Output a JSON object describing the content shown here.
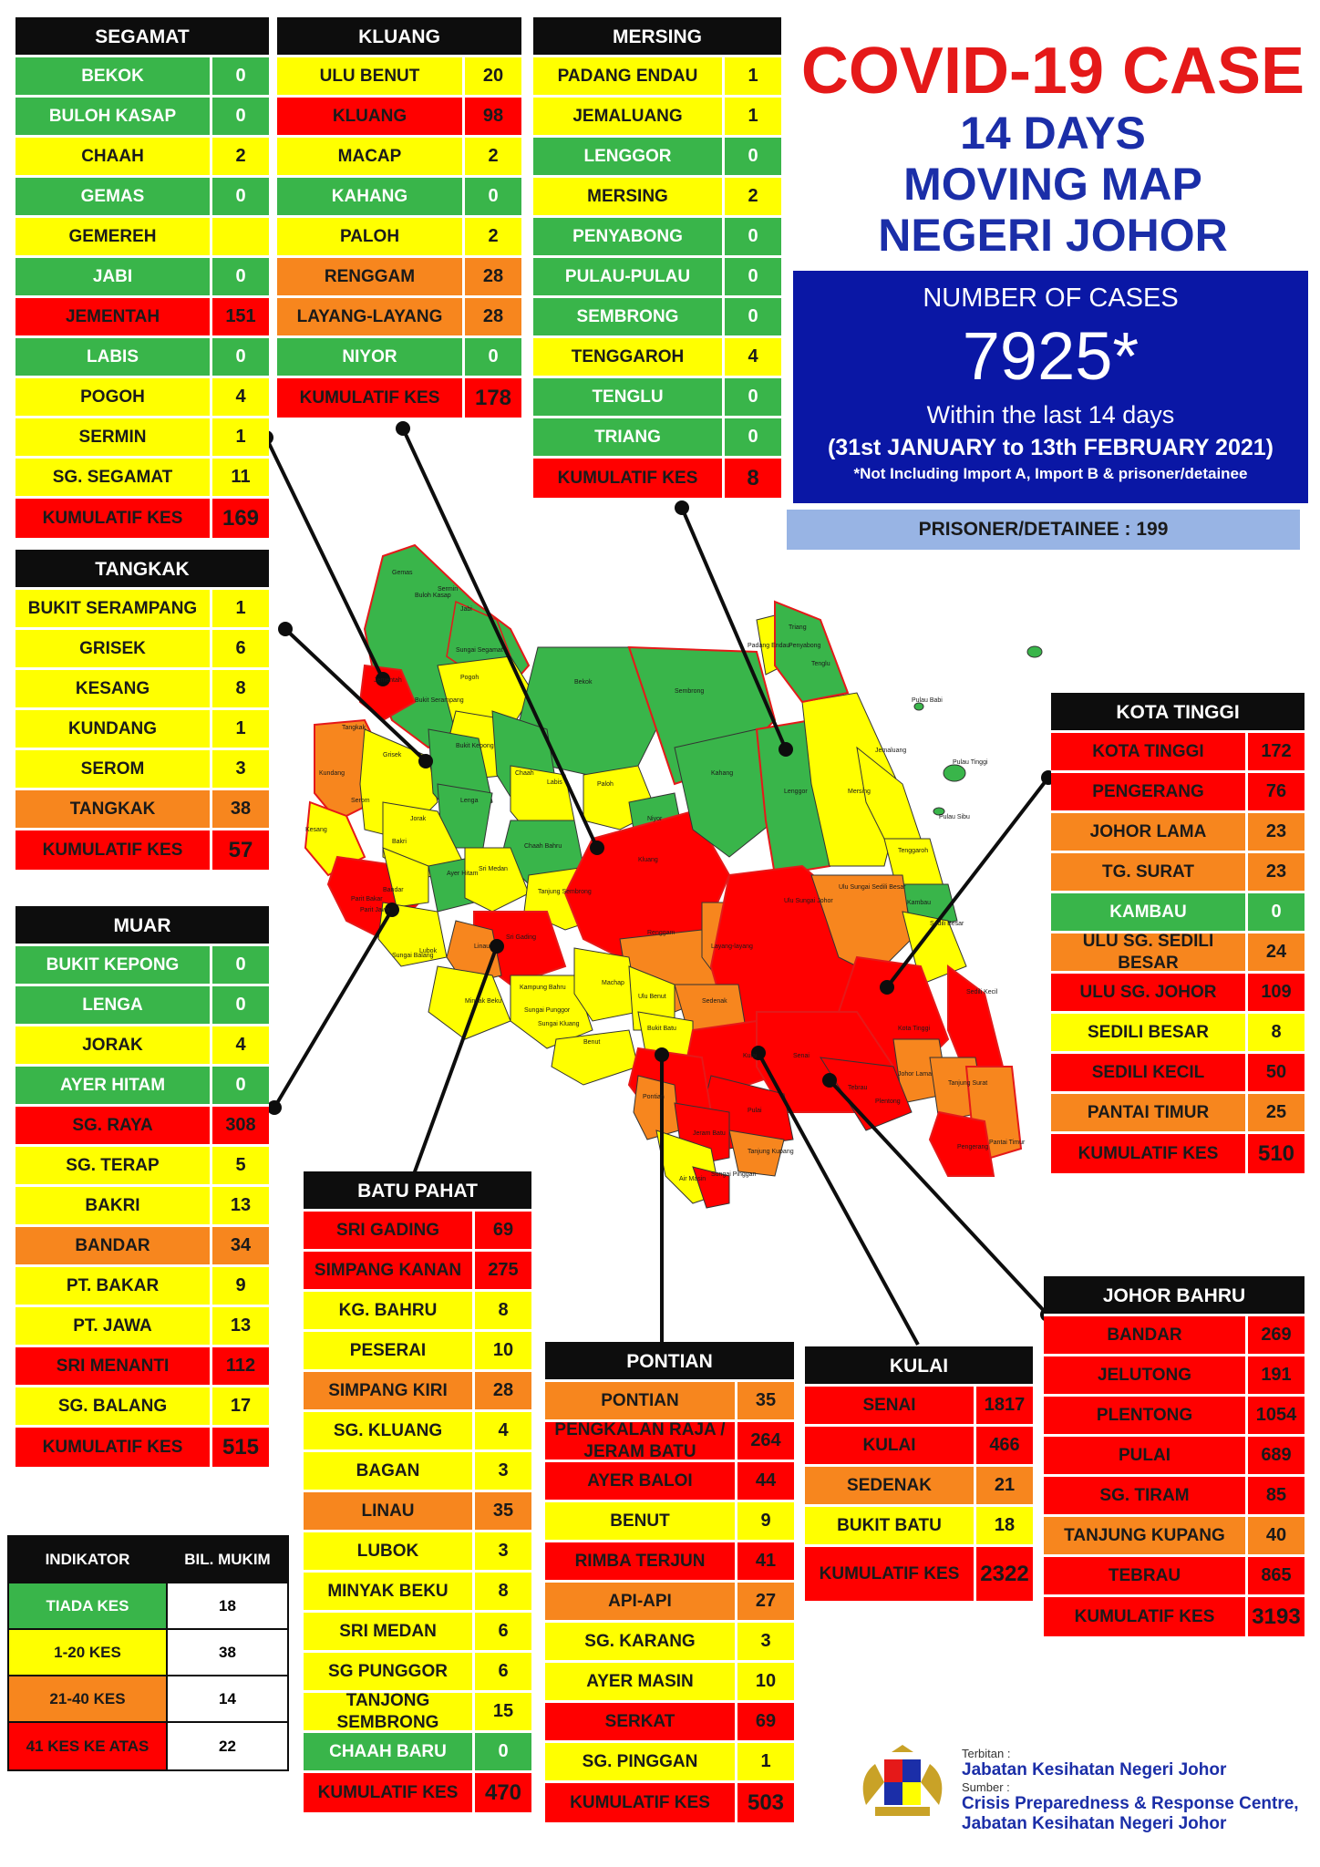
{
  "title": {
    "line1": "COVID-19 CASE",
    "line2": "14 DAYS",
    "line3": "MOVING MAP",
    "line4": "NEGERI JOHOR"
  },
  "summary": {
    "label": "NUMBER OF CASES",
    "total": "7925*",
    "within": "Within the last 14 days",
    "period": "(31st JANUARY to 13th FEBRUARY 2021)",
    "note": "*Not Including Import A, Import B & prisoner/detainee",
    "prisoner": "PRISONER/DETAINEE : 199"
  },
  "colors": {
    "green": "#39b54a",
    "yellow": "#ffff00",
    "orange": "#f7861e",
    "red": "#ff0000",
    "black": "#0d0d0d",
    "blue": "#0a17a5"
  },
  "districts": {
    "segamat": {
      "name": "SEGAMAT",
      "rows": [
        {
          "name": "BEKOK",
          "value": "0",
          "level": "g"
        },
        {
          "name": "BULOH KASAP",
          "value": "0",
          "level": "g"
        },
        {
          "name": "CHAAH",
          "value": "2",
          "level": "y"
        },
        {
          "name": "GEMAS",
          "value": "0",
          "level": "g"
        },
        {
          "name": "GEMEREH",
          "value": "",
          "level": "y"
        },
        {
          "name": "JABI",
          "value": "0",
          "level": "g"
        },
        {
          "name": "JEMENTAH",
          "value": "151",
          "level": "r"
        },
        {
          "name": "LABIS",
          "value": "0",
          "level": "g"
        },
        {
          "name": "POGOH",
          "value": "4",
          "level": "y"
        },
        {
          "name": "SERMIN",
          "value": "1",
          "level": "y"
        },
        {
          "name": "SG. SEGAMAT",
          "value": "11",
          "level": "y"
        }
      ],
      "total_label": "KUMULATIF KES",
      "total": "169"
    },
    "kluang": {
      "name": "KLUANG",
      "rows": [
        {
          "name": "ULU BENUT",
          "value": "20",
          "level": "y"
        },
        {
          "name": "KLUANG",
          "value": "98",
          "level": "r"
        },
        {
          "name": "MACAP",
          "value": "2",
          "level": "y"
        },
        {
          "name": "KAHANG",
          "value": "0",
          "level": "g"
        },
        {
          "name": "PALOH",
          "value": "2",
          "level": "y"
        },
        {
          "name": "RENGGAM",
          "value": "28",
          "level": "o"
        },
        {
          "name": "LAYANG-LAYANG",
          "value": "28",
          "level": "o"
        },
        {
          "name": "NIYOR",
          "value": "0",
          "level": "g"
        }
      ],
      "total_label": "KUMULATIF KES",
      "total": "178"
    },
    "mersing": {
      "name": "MERSING",
      "rows": [
        {
          "name": "PADANG ENDAU",
          "value": "1",
          "level": "y"
        },
        {
          "name": "JEMALUANG",
          "value": "1",
          "level": "y"
        },
        {
          "name": "LENGGOR",
          "value": "0",
          "level": "g"
        },
        {
          "name": "MERSING",
          "value": "2",
          "level": "y"
        },
        {
          "name": "PENYABONG",
          "value": "0",
          "level": "g"
        },
        {
          "name": "PULAU-PULAU",
          "value": "0",
          "level": "g"
        },
        {
          "name": "SEMBRONG",
          "value": "0",
          "level": "g"
        },
        {
          "name": "TENGGAROH",
          "value": "4",
          "level": "y"
        },
        {
          "name": "TENGLU",
          "value": "0",
          "level": "g"
        },
        {
          "name": "TRIANG",
          "value": "0",
          "level": "g"
        }
      ],
      "total_label": "KUMULATIF KES",
      "total": "8"
    },
    "tangkak": {
      "name": "TANGKAK",
      "rows": [
        {
          "name": "BUKIT SERAMPANG",
          "value": "1",
          "level": "y"
        },
        {
          "name": "GRISEK",
          "value": "6",
          "level": "y"
        },
        {
          "name": "KESANG",
          "value": "8",
          "level": "y"
        },
        {
          "name": "KUNDANG",
          "value": "1",
          "level": "y"
        },
        {
          "name": "SEROM",
          "value": "3",
          "level": "y"
        },
        {
          "name": "TANGKAK",
          "value": "38",
          "level": "o"
        }
      ],
      "total_label": "KUMULATIF KES",
      "total": "57"
    },
    "muar": {
      "name": "MUAR",
      "rows": [
        {
          "name": "BUKIT KEPONG",
          "value": "0",
          "level": "g"
        },
        {
          "name": "LENGA",
          "value": "0",
          "level": "g"
        },
        {
          "name": "JORAK",
          "value": "4",
          "level": "y"
        },
        {
          "name": "AYER HITAM",
          "value": "0",
          "level": "g"
        },
        {
          "name": "SG. RAYA",
          "value": "308",
          "level": "r"
        },
        {
          "name": "SG. TERAP",
          "value": "5",
          "level": "y"
        },
        {
          "name": "BAKRI",
          "value": "13",
          "level": "y"
        },
        {
          "name": "BANDAR",
          "value": "34",
          "level": "o"
        },
        {
          "name": "PT. BAKAR",
          "value": "9",
          "level": "y"
        },
        {
          "name": "PT. JAWA",
          "value": "13",
          "level": "y"
        },
        {
          "name": "SRI MENANTI",
          "value": "112",
          "level": "r"
        },
        {
          "name": "SG. BALANG",
          "value": "17",
          "level": "y"
        }
      ],
      "total_label": "KUMULATIF KES",
      "total": "515"
    },
    "batu_pahat": {
      "name": "BATU PAHAT",
      "rows": [
        {
          "name": "SRI GADING",
          "value": "69",
          "level": "r"
        },
        {
          "name": "SIMPANG KANAN",
          "value": "275",
          "level": "r"
        },
        {
          "name": "KG. BAHRU",
          "value": "8",
          "level": "y"
        },
        {
          "name": "PESERAI",
          "value": "10",
          "level": "y"
        },
        {
          "name": "SIMPANG KIRI",
          "value": "28",
          "level": "o"
        },
        {
          "name": "SG. KLUANG",
          "value": "4",
          "level": "y"
        },
        {
          "name": "BAGAN",
          "value": "3",
          "level": "y"
        },
        {
          "name": "LINAU",
          "value": "35",
          "level": "o"
        },
        {
          "name": "LUBOK",
          "value": "3",
          "level": "y"
        },
        {
          "name": "MINYAK BEKU",
          "value": "8",
          "level": "y"
        },
        {
          "name": "SRI MEDAN",
          "value": "6",
          "level": "y"
        },
        {
          "name": "SG PUNGGOR",
          "value": "6",
          "level": "y"
        },
        {
          "name": "TANJONG SEMBRONG",
          "value": "15",
          "level": "y"
        },
        {
          "name": "CHAAH BARU",
          "value": "0",
          "level": "g"
        }
      ],
      "total_label": "KUMULATIF KES",
      "total": "470"
    },
    "pontian": {
      "name": "PONTIAN",
      "rows": [
        {
          "name": "PONTIAN",
          "value": "35",
          "level": "o"
        },
        {
          "name": "PENGKALAN RAJA / JERAM BATU",
          "value": "264",
          "level": "r"
        },
        {
          "name": "AYER BALOI",
          "value": "44",
          "level": "r"
        },
        {
          "name": "BENUT",
          "value": "9",
          "level": "y"
        },
        {
          "name": "RIMBA TERJUN",
          "value": "41",
          "level": "r"
        },
        {
          "name": "API-API",
          "value": "27",
          "level": "o"
        },
        {
          "name": "SG. KARANG",
          "value": "3",
          "level": "y"
        },
        {
          "name": "AYER MASIN",
          "value": "10",
          "level": "y"
        },
        {
          "name": "SERKAT",
          "value": "69",
          "level": "r"
        },
        {
          "name": "SG. PINGGAN",
          "value": "1",
          "level": "y"
        }
      ],
      "total_label": "KUMULATIF KES",
      "total": "503"
    },
    "kulai": {
      "name": "KULAI",
      "rows": [
        {
          "name": "SENAI",
          "value": "1817",
          "level": "r"
        },
        {
          "name": "KULAI",
          "value": "466",
          "level": "r"
        },
        {
          "name": "SEDENAK",
          "value": "21",
          "level": "o"
        },
        {
          "name": "BUKIT BATU",
          "value": "18",
          "level": "y"
        }
      ],
      "total_label": "KUMULATIF KES",
      "total": "2322"
    },
    "kota_tinggi": {
      "name": "KOTA TINGGI",
      "rows": [
        {
          "name": "KOTA TINGGI",
          "value": "172",
          "level": "r"
        },
        {
          "name": "PENGERANG",
          "value": "76",
          "level": "r"
        },
        {
          "name": "JOHOR LAMA",
          "value": "23",
          "level": "o"
        },
        {
          "name": "TG. SURAT",
          "value": "23",
          "level": "o"
        },
        {
          "name": "KAMBAU",
          "value": "0",
          "level": "g"
        },
        {
          "name": "ULU SG. SEDILI BESAR",
          "value": "24",
          "level": "o"
        },
        {
          "name": "ULU SG. JOHOR",
          "value": "109",
          "level": "r"
        },
        {
          "name": "SEDILI BESAR",
          "value": "8",
          "level": "y"
        },
        {
          "name": "SEDILI KECIL",
          "value": "50",
          "level": "r"
        },
        {
          "name": "PANTAI TIMUR",
          "value": "25",
          "level": "o"
        }
      ],
      "total_label": "KUMULATIF KES",
      "total": "510"
    },
    "johor_bahru": {
      "name": "JOHOR BAHRU",
      "rows": [
        {
          "name": "BANDAR",
          "value": "269",
          "level": "r"
        },
        {
          "name": "JELUTONG",
          "value": "191",
          "level": "r"
        },
        {
          "name": "PLENTONG",
          "value": "1054",
          "level": "r"
        },
        {
          "name": "PULAI",
          "value": "689",
          "level": "r"
        },
        {
          "name": "SG. TIRAM",
          "value": "85",
          "level": "r"
        },
        {
          "name": "TANJUNG KUPANG",
          "value": "40",
          "level": "o"
        },
        {
          "name": "TEBRAU",
          "value": "865",
          "level": "r"
        }
      ],
      "total_label": "KUMULATIF KES",
      "total": "3193"
    }
  },
  "legend": {
    "header": [
      "INDIKATOR",
      "BIL. MUKIM"
    ],
    "rows": [
      {
        "label": "TIADA KES",
        "count": "18",
        "level": "g"
      },
      {
        "label": "1-20 KES",
        "count": "38",
        "level": "y"
      },
      {
        "label": "21-40 KES",
        "count": "14",
        "level": "o"
      },
      {
        "label": "41 KES KE ATAS",
        "count": "22",
        "level": "r"
      }
    ]
  },
  "footer": {
    "terbitan_label": "Terbitan :",
    "terbitan": "Jabatan Kesihatan Negeri Johor",
    "sumber_label": "Sumber :",
    "sumber1": "Crisis Preparedness & Response Centre,",
    "sumber2": "Jabatan Kesihatan Negeri Johor"
  },
  "map_labels": [
    "Gemas",
    "Buloh Kasap",
    "Sermin",
    "Jabi",
    "Sungai Segamat",
    "Pogoh",
    "Jementah",
    "Bukit Serampang",
    "Tangkak",
    "Grisek",
    "Bukit Kepong",
    "Chaah",
    "Labis",
    "Lenga",
    "Kundang",
    "Serom",
    "Kesang",
    "Jorak",
    "Bakri",
    "Ayer Hitam",
    "Sri Medan",
    "Paloh",
    "Niyor",
    "Chaah Bahru",
    "Tanjung Sembrong",
    "Kluang",
    "Renggam",
    "Layang-layang",
    "Bekok",
    "Sembrong",
    "Kahang",
    "Lenggor",
    "Mersing",
    "Padang Endau",
    "Triang",
    "Penyabong",
    "Tenglu",
    "Pulau Babi",
    "Pulau Tinggi",
    "Pulau Sibu",
    "Jemaluang",
    "Tenggaroh",
    "Kambau",
    "Ulu Sungai Sedili Besar",
    "Ulu Sungai Johor",
    "Sedili Besar",
    "Sedili Kecil",
    "Kota Tinggi",
    "Johor Lama",
    "Tanjung Surat",
    "Pantai Timur",
    "Pengerang",
    "Senai",
    "Kulai",
    "Sedenak",
    "Bukit Batu",
    "Tebrau",
    "Plentong",
    "Pulai",
    "Tanjung Kupang",
    "Benut",
    "Pontian",
    "Jeram Batu",
    "Sri Gading",
    "Machap",
    "Ulu Benut",
    "Linau",
    "Minyak Beku",
    "Kampung Bahru",
    "Sungai Punggor",
    "Sungai Kluang",
    "Sungai Pinggan",
    "Sungai Balang",
    "Lubok",
    "Bandar",
    "Parit Bakar",
    "Parit Jawa",
    "Air Masin"
  ]
}
